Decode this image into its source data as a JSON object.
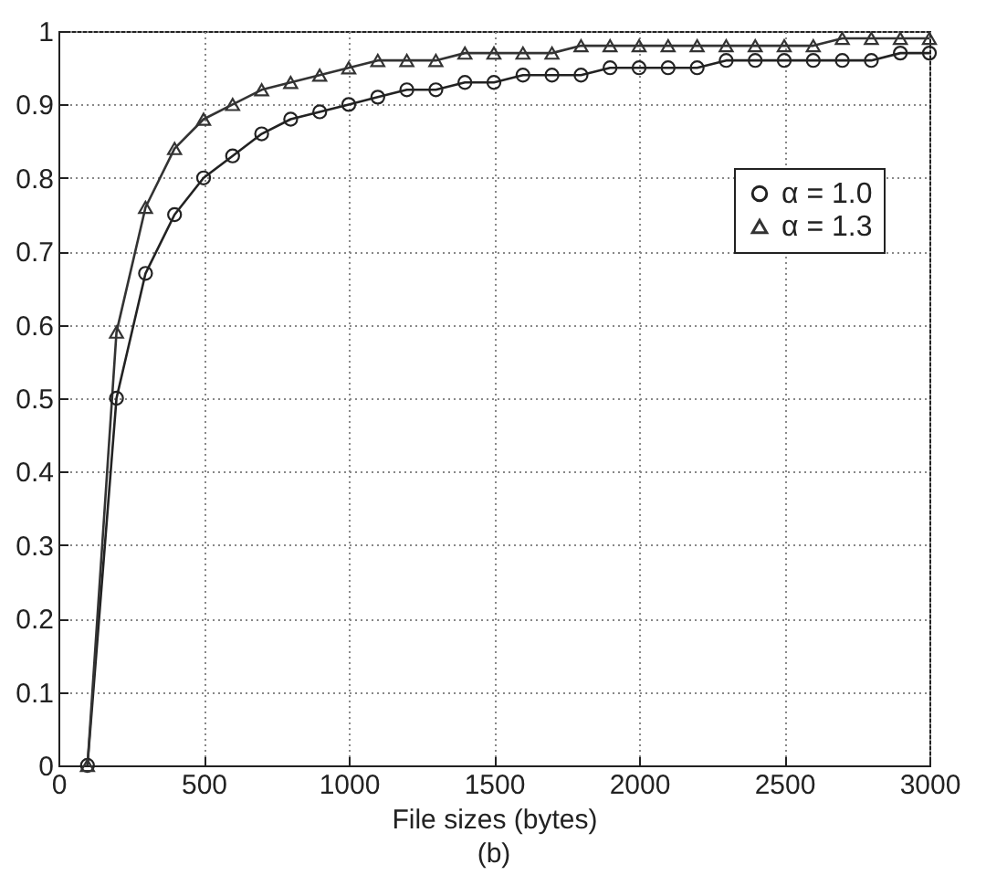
{
  "chart_data": {
    "type": "line",
    "xlabel": "File sizes (bytes)",
    "annotations": [
      "(b)"
    ],
    "x": [
      100,
      200,
      300,
      400,
      500,
      600,
      700,
      800,
      900,
      1000,
      1100,
      1200,
      1300,
      1400,
      1500,
      1600,
      1700,
      1800,
      1900,
      2000,
      2100,
      2200,
      2300,
      2400,
      2500,
      2600,
      2700,
      2800,
      2900,
      3000
    ],
    "series": [
      {
        "name": "α = 1.0",
        "color": "#222222",
        "marker": "circle",
        "values": [
          0,
          0.5,
          0.67,
          0.75,
          0.8,
          0.83,
          0.86,
          0.88,
          0.89,
          0.9,
          0.91,
          0.92,
          0.92,
          0.93,
          0.93,
          0.94,
          0.94,
          0.94,
          0.95,
          0.95,
          0.95,
          0.95,
          0.96,
          0.96,
          0.96,
          0.96,
          0.96,
          0.96,
          0.97,
          0.97
        ]
      },
      {
        "name": "α = 1.3",
        "color": "#333333",
        "marker": "triangle",
        "values": [
          0,
          0.59,
          0.76,
          0.84,
          0.88,
          0.9,
          0.92,
          0.93,
          0.94,
          0.95,
          0.96,
          0.96,
          0.96,
          0.97,
          0.97,
          0.97,
          0.97,
          0.98,
          0.98,
          0.98,
          0.98,
          0.98,
          0.98,
          0.98,
          0.98,
          0.98,
          0.99,
          0.99,
          0.99,
          0.99
        ]
      }
    ],
    "xlim": [
      0,
      3000
    ],
    "xticks": [
      0,
      500,
      1000,
      1500,
      2000,
      2500,
      3000
    ],
    "ylim": [
      0,
      1
    ],
    "yticks": [
      0,
      0.1,
      0.2,
      0.3,
      0.4,
      0.5,
      0.6,
      0.7,
      0.8,
      0.9,
      1
    ],
    "grid": true,
    "legend": "top right",
    "line_style": "solid"
  }
}
